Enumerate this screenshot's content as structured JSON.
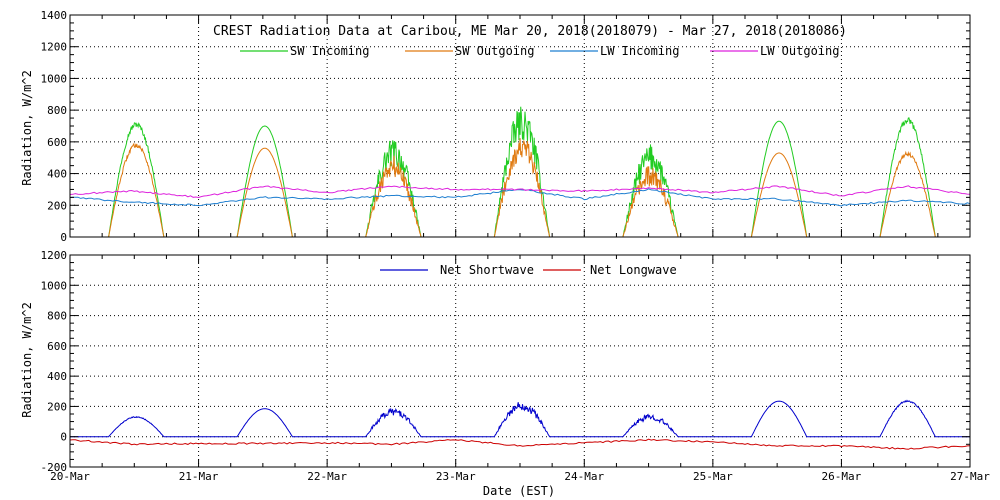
{
  "colors": {
    "sw_in": "#22cc22",
    "sw_out": "#e07a10",
    "lw_in": "#1f7fd0",
    "lw_out": "#dd22dd",
    "net_sw": "#0000cc",
    "net_lw": "#cc0000",
    "grid": "#000000",
    "axis": "#000000"
  },
  "x_axis": {
    "label": "Date (EST)",
    "ticks": [
      "20-Mar",
      "21-Mar",
      "22-Mar",
      "23-Mar",
      "24-Mar",
      "25-Mar",
      "26-Mar",
      "27-Mar"
    ],
    "range_days": [
      0,
      7
    ]
  },
  "chart_data": [
    {
      "type": "line",
      "title": "CREST Radiation Data at Caribou, ME   Mar 20, 2018(2018079) - Mar 27, 2018(2018086)",
      "ylabel": "Radiation, W/m^2",
      "ylim": [
        0,
        1400
      ],
      "yticks": [
        0,
        200,
        400,
        600,
        800,
        1000,
        1200,
        1400
      ],
      "grid": true,
      "legend_placement": "top",
      "series": [
        {
          "name": "SW Incoming",
          "color_key": "sw_in",
          "kind": "sw",
          "peaks": [
            710,
            700,
            530,
            720,
            500,
            730,
            735
          ],
          "noise": [
            0.05,
            0.02,
            0.35,
            0.3,
            0.35,
            0.02,
            0.05
          ]
        },
        {
          "name": "SW Outgoing",
          "color_key": "sw_out",
          "kind": "sw",
          "peaks": [
            580,
            560,
            440,
            560,
            380,
            530,
            525
          ],
          "noise": [
            0.05,
            0.02,
            0.35,
            0.3,
            0.35,
            0.02,
            0.05
          ]
        },
        {
          "name": "LW Incoming",
          "color_key": "lw_in",
          "kind": "lw",
          "x": [
            0,
            0.5,
            1,
            1.5,
            2,
            2.5,
            3,
            3.5,
            4,
            4.5,
            5,
            5.5,
            6,
            6.5,
            7
          ],
          "y": [
            250,
            220,
            200,
            250,
            240,
            260,
            250,
            300,
            240,
            300,
            240,
            240,
            200,
            230,
            210
          ]
        },
        {
          "name": "LW Outgoing",
          "color_key": "lw_out",
          "kind": "lw",
          "x": [
            0,
            0.5,
            1,
            1.5,
            2,
            2.5,
            3,
            3.5,
            4,
            4.5,
            5,
            5.5,
            6,
            6.5,
            7
          ],
          "y": [
            270,
            290,
            250,
            320,
            280,
            320,
            300,
            300,
            290,
            310,
            280,
            320,
            260,
            320,
            270
          ]
        }
      ]
    },
    {
      "type": "line",
      "title": "",
      "ylabel": "Radiation, W/m^2",
      "ylim": [
        -200,
        1200
      ],
      "yticks": [
        -200,
        0,
        200,
        400,
        600,
        800,
        1000,
        1200
      ],
      "grid": true,
      "legend_placement": "top",
      "series": [
        {
          "name": "Net Shortwave",
          "color_key": "net_sw",
          "kind": "sw",
          "peaks": [
            130,
            185,
            165,
            205,
            130,
            235,
            235
          ],
          "noise": [
            0.05,
            0.02,
            0.3,
            0.3,
            0.3,
            0.02,
            0.05
          ],
          "baseline": 0
        },
        {
          "name": "Net Longwave",
          "color_key": "net_lw",
          "kind": "lw",
          "x": [
            0,
            0.5,
            1,
            1.5,
            2,
            2.5,
            3,
            3.5,
            4,
            4.5,
            5,
            5.5,
            6,
            6.5,
            7
          ],
          "y": [
            -20,
            -50,
            -45,
            -45,
            -40,
            -50,
            -20,
            -60,
            -40,
            -20,
            -35,
            -60,
            -60,
            -80,
            -60
          ]
        }
      ]
    }
  ]
}
